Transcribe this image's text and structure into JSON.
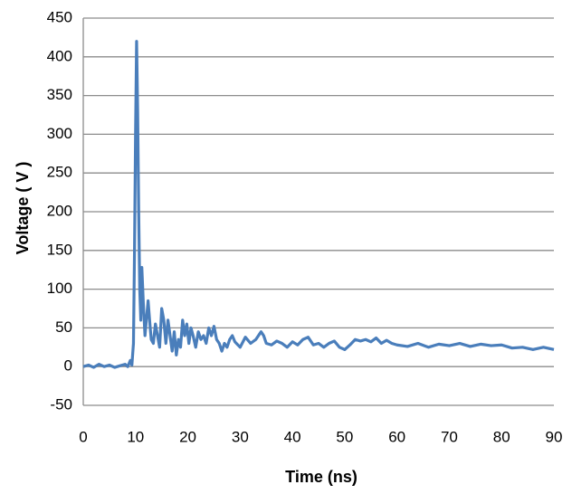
{
  "chart_data": {
    "type": "line",
    "x_label": "Time (ns)",
    "y_label": "Voltage ( V )",
    "color": "#4a7ebb",
    "grid": true,
    "xlim": [
      0,
      90
    ],
    "xticks": [
      0,
      10,
      20,
      30,
      40,
      50,
      60,
      70,
      80,
      90
    ],
    "ylim": [
      -50,
      450
    ],
    "yticks": [
      -50,
      0,
      50,
      100,
      150,
      200,
      250,
      300,
      350,
      400,
      450
    ],
    "x": [
      0,
      1,
      2,
      3,
      4,
      5,
      6,
      7,
      8,
      8.5,
      9,
      9.3,
      9.6,
      9.8,
      10,
      10.2,
      10.4,
      10.6,
      10.8,
      11,
      11.2,
      11.5,
      11.8,
      12,
      12.4,
      12.8,
      13,
      13.4,
      13.8,
      14.2,
      14.6,
      15,
      15.4,
      15.8,
      16.2,
      16.6,
      17,
      17.4,
      17.8,
      18.2,
      18.6,
      19,
      19.4,
      19.8,
      20.2,
      20.6,
      21,
      21.5,
      22,
      22.5,
      23,
      23.5,
      24,
      24.5,
      25,
      25.5,
      26,
      26.5,
      27,
      27.5,
      28,
      28.5,
      29,
      30,
      31,
      32,
      33,
      34,
      34.5,
      35,
      36,
      37,
      38,
      39,
      40,
      41,
      42,
      43,
      44,
      45,
      46,
      47,
      48,
      49,
      50,
      51,
      52,
      53,
      54,
      55,
      56,
      57,
      58,
      59,
      60,
      62,
      64,
      66,
      68,
      70,
      72,
      74,
      76,
      78,
      80,
      82,
      84,
      86,
      88,
      90
    ],
    "values": [
      0,
      2,
      -1,
      3,
      0,
      2,
      -1,
      1,
      3,
      0,
      8,
      2,
      30,
      150,
      300,
      420,
      330,
      200,
      100,
      60,
      128,
      80,
      40,
      55,
      85,
      50,
      35,
      30,
      55,
      40,
      25,
      75,
      60,
      30,
      60,
      40,
      20,
      45,
      15,
      35,
      25,
      60,
      40,
      55,
      30,
      50,
      40,
      25,
      45,
      35,
      40,
      30,
      50,
      40,
      52,
      35,
      30,
      20,
      30,
      25,
      35,
      40,
      32,
      25,
      38,
      30,
      35,
      45,
      40,
      30,
      28,
      33,
      30,
      25,
      32,
      28,
      35,
      38,
      28,
      30,
      25,
      30,
      33,
      25,
      22,
      28,
      35,
      33,
      35,
      32,
      37,
      30,
      34,
      30,
      28,
      26,
      30,
      25,
      29,
      27,
      30,
      26,
      29,
      27,
      28,
      24,
      25,
      22,
      25,
      22
    ]
  }
}
